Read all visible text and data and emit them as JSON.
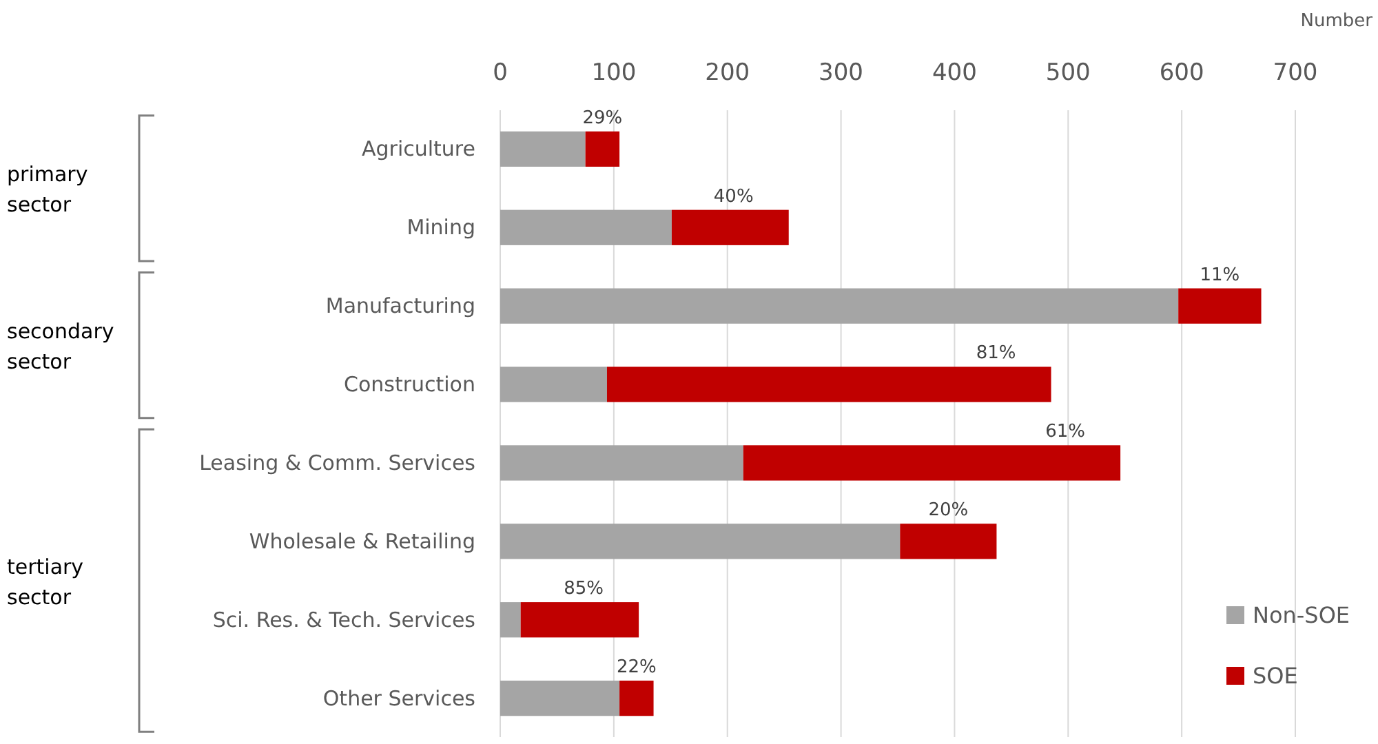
{
  "chart_data": {
    "type": "bar",
    "orientation": "horizontal",
    "stacked": true,
    "xlabel": "Number",
    "categories": [
      "Agriculture",
      "Mining",
      "Manufacturing",
      "Construction",
      "Leasing & Comm. Services",
      "Wholesale & Retailing",
      "Sci. Res. & Tech. Services",
      "Other Services"
    ],
    "series": [
      {
        "name": "Non-SOE",
        "color": "#a5a5a5",
        "values": [
          75,
          151,
          597,
          94,
          214,
          352,
          18,
          105
        ]
      },
      {
        "name": "SOE",
        "color": "#c00000",
        "values": [
          30,
          103,
          73,
          391,
          332,
          85,
          104,
          30
        ]
      }
    ],
    "xlim": [
      0,
      700
    ],
    "xticks": [
      0,
      100,
      200,
      300,
      400,
      500,
      600,
      700
    ],
    "grid": "x",
    "legend": "bottom right",
    "annotations": [
      "primary sector",
      "secondary sector",
      "tertiary sector",
      {
        "text": "29%",
        "x": 105,
        "y": "Agriculture"
      },
      {
        "text": "40%",
        "x": 254,
        "y": "Mining"
      },
      {
        "text": "11%",
        "x": 670,
        "y": "Manufacturing"
      },
      {
        "text": "81%",
        "x": 485,
        "y": "Construction"
      },
      {
        "text": "61%",
        "x": 546,
        "y": "Leasing & Comm. Services"
      },
      {
        "text": "20%",
        "x": 437,
        "y": "Wholesale & Retailing"
      },
      {
        "text": "85%",
        "x": 122,
        "y": "Sci. Res. & Tech. Services"
      },
      {
        "text": "22%",
        "x": 135,
        "y": "Other Services"
      }
    ]
  }
}
